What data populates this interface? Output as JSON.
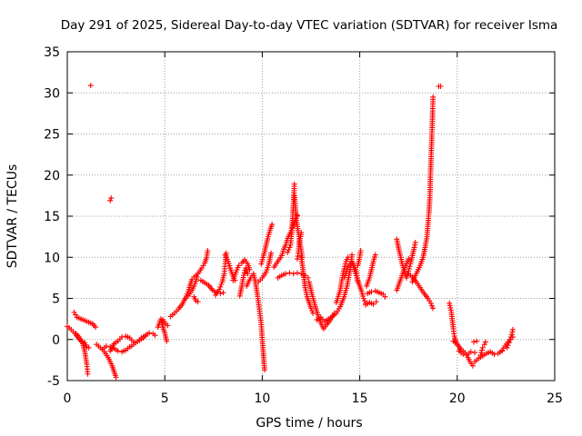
{
  "chart_data": {
    "type": "scatter",
    "title": "Day 291 of 2025, Sidereal Day-to-day VTEC variation (SDTVAR) for receiver Isma",
    "xlabel": "GPS time / hours",
    "ylabel": "SDTVAR / TECUs",
    "xlim": [
      0,
      25
    ],
    "ylim": [
      -5,
      35
    ],
    "xticks": [
      "0",
      "5",
      "10",
      "15",
      "20",
      "25"
    ],
    "yticks": [
      "-5",
      "0",
      "5",
      "10",
      "15",
      "20",
      "25",
      "30",
      "35"
    ],
    "grid": true,
    "marker": "+",
    "marker_color": "#ff0000",
    "segments": [
      [
        [
          0.0,
          1.6
        ],
        [
          0.2,
          1.2
        ],
        [
          0.4,
          0.7
        ],
        [
          0.6,
          0.1
        ],
        [
          0.8,
          -0.5
        ],
        [
          0.9,
          -1.5
        ],
        [
          1.0,
          -3.0
        ],
        [
          1.05,
          -4.2
        ]
      ],
      [
        [
          0.35,
          3.3
        ],
        [
          0.5,
          2.7
        ],
        [
          0.7,
          2.5
        ],
        [
          0.9,
          2.3
        ],
        [
          1.1,
          2.1
        ],
        [
          1.3,
          1.9
        ],
        [
          1.45,
          1.5
        ]
      ],
      [
        [
          0.45,
          0.7
        ],
        [
          0.6,
          0.3
        ],
        [
          0.75,
          -0.2
        ],
        [
          0.9,
          -0.4
        ],
        [
          1.0,
          -0.9
        ],
        [
          1.1,
          -1.0
        ]
      ],
      [
        [
          1.5,
          -0.6
        ],
        [
          1.7,
          -1.0
        ],
        [
          1.9,
          -1.5
        ],
        [
          2.1,
          -2.2
        ],
        [
          2.3,
          -3.2
        ],
        [
          2.5,
          -4.6
        ]
      ],
      [
        [
          1.8,
          -1.2
        ],
        [
          2.0,
          -0.8
        ],
        [
          2.2,
          -0.9
        ],
        [
          2.4,
          -1.1
        ],
        [
          2.6,
          -1.4
        ],
        [
          2.8,
          -1.5
        ],
        [
          3.0,
          -1.3
        ],
        [
          3.2,
          -0.9
        ]
      ],
      [
        [
          2.2,
          -1.4
        ],
        [
          2.4,
          -0.5
        ],
        [
          2.6,
          -0.2
        ],
        [
          2.8,
          0.3
        ],
        [
          3.0,
          0.4
        ],
        [
          3.2,
          0.2
        ],
        [
          3.4,
          -0.3
        ]
      ],
      [
        [
          3.3,
          -0.8
        ],
        [
          3.5,
          -0.4
        ],
        [
          3.7,
          -0.1
        ],
        [
          3.9,
          0.2
        ],
        [
          4.0,
          0.4
        ]
      ],
      [
        [
          3.8,
          0.2
        ],
        [
          4.0,
          0.5
        ],
        [
          4.2,
          0.8
        ],
        [
          4.4,
          0.7
        ],
        [
          4.5,
          0.5
        ]
      ],
      [
        [
          4.65,
          1.5
        ],
        [
          4.8,
          2.5
        ],
        [
          4.9,
          1.5
        ],
        [
          5.0,
          0.8
        ],
        [
          5.05,
          0.3
        ],
        [
          5.1,
          -0.2
        ]
      ],
      [
        [
          4.9,
          2.4
        ],
        [
          5.05,
          1.9
        ],
        [
          5.15,
          1.7
        ]
      ],
      [
        [
          5.3,
          2.8
        ],
        [
          5.5,
          3.2
        ],
        [
          5.7,
          3.7
        ],
        [
          5.9,
          4.3
        ],
        [
          6.05,
          5.0
        ],
        [
          6.2,
          5.8
        ],
        [
          6.3,
          6.6
        ],
        [
          6.4,
          7.3
        ]
      ],
      [
        [
          6.0,
          4.8
        ],
        [
          6.2,
          5.3
        ],
        [
          6.4,
          6.0
        ],
        [
          6.5,
          6.5
        ],
        [
          6.6,
          7.1
        ],
        [
          6.65,
          7.6
        ]
      ],
      [
        [
          6.5,
          5.2
        ],
        [
          6.6,
          4.7
        ],
        [
          6.7,
          4.6
        ]
      ],
      [
        [
          6.5,
          7.6
        ],
        [
          6.7,
          8.0
        ],
        [
          6.9,
          8.7
        ],
        [
          7.05,
          9.3
        ],
        [
          7.15,
          10.0
        ],
        [
          7.2,
          10.8
        ]
      ],
      [
        [
          6.85,
          7.2
        ],
        [
          7.05,
          6.9
        ],
        [
          7.25,
          6.6
        ],
        [
          7.45,
          6.0
        ],
        [
          7.65,
          5.7
        ],
        [
          7.85,
          5.6
        ],
        [
          8.0,
          5.7
        ]
      ],
      [
        [
          7.6,
          5.4
        ],
        [
          7.8,
          6.1
        ],
        [
          7.95,
          7.0
        ],
        [
          8.05,
          8.0
        ],
        [
          8.1,
          9.2
        ],
        [
          8.15,
          10.5
        ]
      ],
      [
        [
          8.1,
          10.3
        ],
        [
          8.25,
          9.5
        ],
        [
          8.35,
          8.7
        ],
        [
          8.5,
          7.7
        ],
        [
          8.6,
          7.2
        ]
      ],
      [
        [
          8.5,
          7.2
        ],
        [
          8.65,
          8.2
        ],
        [
          8.8,
          9.0
        ],
        [
          8.95,
          9.3
        ],
        [
          9.1,
          9.7
        ],
        [
          9.25,
          9.2
        ],
        [
          9.35,
          8.5
        ]
      ],
      [
        [
          8.85,
          5.3
        ],
        [
          8.95,
          6.5
        ],
        [
          9.05,
          7.8
        ],
        [
          9.15,
          8.7
        ],
        [
          9.25,
          8.0
        ]
      ],
      [
        [
          9.2,
          6.5
        ],
        [
          9.4,
          7.5
        ],
        [
          9.55,
          8.0
        ],
        [
          9.65,
          7.0
        ],
        [
          9.75,
          5.5
        ],
        [
          9.85,
          3.7
        ],
        [
          9.95,
          1.8
        ],
        [
          10.0,
          0.0
        ],
        [
          10.05,
          -1.5
        ],
        [
          10.1,
          -3.2
        ],
        [
          10.12,
          -3.7
        ]
      ],
      [
        [
          9.8,
          7.0
        ],
        [
          10.0,
          7.5
        ],
        [
          10.2,
          8.2
        ],
        [
          10.35,
          9.3
        ],
        [
          10.45,
          10.5
        ]
      ],
      [
        [
          9.95,
          9.2
        ],
        [
          10.1,
          10.5
        ],
        [
          10.2,
          11.5
        ],
        [
          10.3,
          12.5
        ],
        [
          10.4,
          13.3
        ],
        [
          10.5,
          14.0
        ]
      ],
      [
        [
          10.6,
          8.8
        ],
        [
          10.8,
          9.5
        ],
        [
          11.0,
          10.2
        ],
        [
          11.1,
          11.0
        ],
        [
          11.2,
          11.5
        ],
        [
          11.3,
          12.3
        ],
        [
          11.4,
          12.8
        ],
        [
          11.5,
          13.3
        ],
        [
          11.6,
          13.9
        ],
        [
          11.7,
          14.7
        ],
        [
          11.8,
          15.1
        ]
      ],
      [
        [
          11.3,
          10.6
        ],
        [
          11.45,
          11.5
        ],
        [
          11.5,
          12.8
        ],
        [
          11.55,
          14.5
        ],
        [
          11.6,
          16.5
        ],
        [
          11.65,
          18.9
        ]
      ],
      [
        [
          11.65,
          17.5
        ],
        [
          11.7,
          16.0
        ],
        [
          11.75,
          14.5
        ],
        [
          11.85,
          13.0
        ],
        [
          11.95,
          11.5
        ],
        [
          12.05,
          10.0
        ]
      ],
      [
        [
          11.8,
          9.8
        ],
        [
          11.85,
          10.5
        ],
        [
          11.9,
          11.8
        ],
        [
          12.0,
          13.0
        ]
      ],
      [
        [
          10.8,
          7.5
        ],
        [
          11.0,
          7.8
        ],
        [
          11.2,
          8.0
        ],
        [
          11.4,
          8.1
        ],
        [
          11.6,
          8.0
        ],
        [
          11.8,
          8.1
        ],
        [
          12.0,
          8.0
        ],
        [
          12.2,
          7.8
        ],
        [
          12.35,
          7.5
        ]
      ],
      [
        [
          12.0,
          10.0
        ],
        [
          12.1,
          8.3
        ],
        [
          12.2,
          6.3
        ],
        [
          12.3,
          5.2
        ],
        [
          12.4,
          4.5
        ],
        [
          12.5,
          3.8
        ],
        [
          12.6,
          3.2
        ]
      ],
      [
        [
          12.4,
          7.0
        ],
        [
          12.55,
          5.5
        ],
        [
          12.7,
          4.2
        ],
        [
          12.85,
          3.0
        ],
        [
          13.0,
          2.0
        ],
        [
          13.15,
          1.3
        ],
        [
          13.3,
          1.8
        ],
        [
          13.5,
          2.4
        ],
        [
          13.7,
          3.2
        ]
      ],
      [
        [
          12.8,
          2.4
        ],
        [
          13.0,
          2.7
        ],
        [
          13.2,
          2.2
        ],
        [
          13.4,
          2.5
        ],
        [
          13.6,
          2.8
        ],
        [
          13.8,
          3.2
        ],
        [
          14.0,
          4.0
        ],
        [
          14.2,
          5.2
        ],
        [
          14.35,
          6.5
        ],
        [
          14.45,
          7.8
        ],
        [
          14.55,
          9.0
        ],
        [
          14.6,
          10.3
        ]
      ],
      [
        [
          13.8,
          4.5
        ],
        [
          14.0,
          6.0
        ],
        [
          14.1,
          7.5
        ],
        [
          14.2,
          8.6
        ],
        [
          14.3,
          9.5
        ],
        [
          14.4,
          10.0
        ]
      ],
      [
        [
          14.2,
          7.5
        ],
        [
          14.4,
          8.8
        ],
        [
          14.6,
          9.5
        ],
        [
          14.8,
          8.5
        ],
        [
          14.9,
          7.0
        ]
      ],
      [
        [
          14.6,
          9.5
        ],
        [
          14.75,
          8.3
        ],
        [
          14.9,
          7.2
        ],
        [
          15.0,
          6.5
        ],
        [
          15.1,
          5.8
        ],
        [
          15.2,
          5.0
        ],
        [
          15.3,
          4.4
        ]
      ],
      [
        [
          14.9,
          9.0
        ],
        [
          15.0,
          10.0
        ],
        [
          15.05,
          10.8
        ]
      ],
      [
        [
          15.35,
          6.5
        ],
        [
          15.5,
          7.5
        ],
        [
          15.6,
          8.5
        ],
        [
          15.7,
          9.5
        ],
        [
          15.8,
          10.3
        ]
      ],
      [
        [
          15.3,
          4.2
        ],
        [
          15.5,
          4.5
        ],
        [
          15.7,
          4.3
        ],
        [
          15.85,
          4.6
        ]
      ],
      [
        [
          15.4,
          5.6
        ],
        [
          15.6,
          5.8
        ],
        [
          15.8,
          5.9
        ],
        [
          16.0,
          5.7
        ],
        [
          16.2,
          5.5
        ],
        [
          16.3,
          5.2
        ]
      ],
      [
        [
          16.9,
          12.2
        ],
        [
          17.0,
          11.0
        ],
        [
          17.1,
          10.0
        ],
        [
          17.2,
          9.0
        ],
        [
          17.3,
          8.2
        ],
        [
          17.4,
          7.5
        ],
        [
          17.5,
          8.3
        ],
        [
          17.6,
          9.2
        ],
        [
          17.7,
          10.2
        ],
        [
          17.8,
          11.2
        ],
        [
          17.85,
          11.8
        ]
      ],
      [
        [
          16.9,
          6.0
        ],
        [
          17.05,
          7.0
        ],
        [
          17.2,
          8.0
        ],
        [
          17.35,
          9.0
        ],
        [
          17.5,
          9.8
        ]
      ],
      [
        [
          17.5,
          8.0
        ],
        [
          17.7,
          7.6
        ],
        [
          17.9,
          7.0
        ],
        [
          18.1,
          6.3
        ],
        [
          18.3,
          5.6
        ],
        [
          18.5,
          5.0
        ],
        [
          18.65,
          4.4
        ],
        [
          18.75,
          3.8
        ]
      ],
      [
        [
          17.7,
          7.0
        ],
        [
          17.9,
          8.0
        ],
        [
          18.1,
          9.0
        ],
        [
          18.25,
          10.0
        ],
        [
          18.35,
          11.2
        ],
        [
          18.45,
          12.5
        ],
        [
          18.5,
          14.0
        ],
        [
          18.55,
          15.5
        ],
        [
          18.6,
          17.5
        ],
        [
          18.62,
          19.5
        ],
        [
          18.65,
          21.5
        ],
        [
          18.68,
          23.5
        ],
        [
          18.7,
          25.0
        ],
        [
          18.72,
          26.3
        ],
        [
          18.74,
          27.8
        ],
        [
          18.76,
          29.5
        ]
      ],
      [
        [
          19.05,
          30.8
        ]
      ],
      [
        [
          19.6,
          4.4
        ],
        [
          19.7,
          3.3
        ],
        [
          19.75,
          2.3
        ],
        [
          19.8,
          1.3
        ],
        [
          19.85,
          0.4
        ],
        [
          19.95,
          -0.3
        ],
        [
          20.05,
          -0.8
        ],
        [
          20.15,
          -1.2
        ]
      ],
      [
        [
          19.8,
          -0.2
        ],
        [
          20.0,
          -0.6
        ],
        [
          20.2,
          -1.2
        ],
        [
          20.4,
          -1.6
        ],
        [
          20.55,
          -2.2
        ],
        [
          20.65,
          -2.7
        ],
        [
          20.8,
          -3.2
        ]
      ],
      [
        [
          20.1,
          -1.4
        ],
        [
          20.3,
          -1.8
        ],
        [
          20.5,
          -1.9
        ],
        [
          20.7,
          -1.5
        ],
        [
          20.9,
          -1.6
        ]
      ],
      [
        [
          20.9,
          -2.7
        ],
        [
          21.1,
          -2.3
        ],
        [
          21.3,
          -2.0
        ],
        [
          21.5,
          -1.7
        ],
        [
          21.7,
          -1.5
        ],
        [
          21.9,
          -1.8
        ],
        [
          22.1,
          -1.7
        ],
        [
          22.3,
          -1.4
        ]
      ],
      [
        [
          21.2,
          -1.9
        ],
        [
          21.3,
          -1.0
        ],
        [
          21.4,
          -0.6
        ],
        [
          21.45,
          -0.3
        ]
      ],
      [
        [
          20.85,
          -0.3
        ],
        [
          21.0,
          -0.2
        ]
      ],
      [
        [
          22.3,
          -1.3
        ],
        [
          22.45,
          -0.8
        ],
        [
          22.6,
          -0.3
        ],
        [
          22.7,
          0.0
        ],
        [
          22.8,
          0.6
        ],
        [
          22.85,
          1.2
        ]
      ],
      [
        [
          22.55,
          -1.0
        ],
        [
          22.65,
          -0.4
        ],
        [
          22.75,
          0.0
        ],
        [
          22.85,
          0.3
        ]
      ]
    ],
    "isolated_points": [
      [
        1.2,
        30.9
      ],
      [
        2.2,
        16.9
      ],
      [
        2.25,
        17.2
      ],
      [
        19.15,
        30.8
      ],
      [
        11.8,
        15.0
      ]
    ]
  }
}
